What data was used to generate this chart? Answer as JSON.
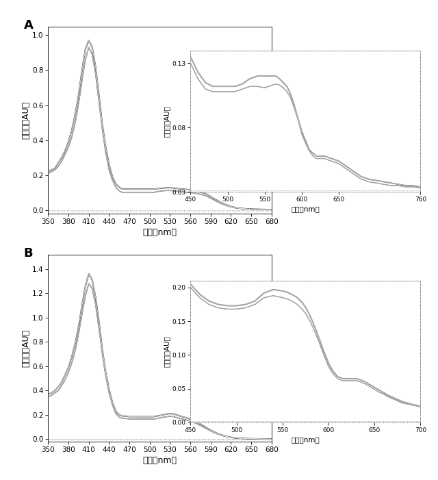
{
  "panel_A": {
    "label": "A",
    "xlabel": "波長（nm）",
    "ylabel": "吸光度（AU）",
    "xlim": [
      350,
      680
    ],
    "ylim": [
      -0.02,
      1.05
    ],
    "xticks": [
      350,
      380,
      410,
      440,
      470,
      500,
      530,
      560,
      590,
      620,
      650,
      680
    ],
    "yticks": [
      0,
      0.2,
      0.4,
      0.6,
      0.8,
      1
    ],
    "curve1_x": [
      350,
      355,
      360,
      365,
      370,
      375,
      380,
      385,
      390,
      395,
      400,
      405,
      410,
      415,
      420,
      425,
      430,
      435,
      440,
      445,
      450,
      455,
      460,
      465,
      470,
      475,
      480,
      485,
      490,
      495,
      500,
      505,
      510,
      515,
      520,
      525,
      530,
      535,
      540,
      545,
      550,
      555,
      560,
      565,
      570,
      575,
      580,
      585,
      590,
      595,
      600,
      605,
      610,
      615,
      620,
      625,
      630,
      635,
      640,
      645,
      650,
      655,
      660,
      665,
      670,
      675,
      680
    ],
    "curve1_y": [
      0.21,
      0.22,
      0.23,
      0.25,
      0.28,
      0.32,
      0.36,
      0.42,
      0.5,
      0.61,
      0.74,
      0.86,
      0.93,
      0.89,
      0.78,
      0.62,
      0.46,
      0.33,
      0.23,
      0.17,
      0.13,
      0.11,
      0.1,
      0.1,
      0.1,
      0.1,
      0.1,
      0.1,
      0.1,
      0.1,
      0.1,
      0.1,
      0.105,
      0.108,
      0.11,
      0.112,
      0.112,
      0.11,
      0.108,
      0.106,
      0.104,
      0.102,
      0.1,
      0.098,
      0.095,
      0.09,
      0.085,
      0.078,
      0.068,
      0.058,
      0.048,
      0.038,
      0.03,
      0.024,
      0.018,
      0.014,
      0.011,
      0.009,
      0.007,
      0.006,
      0.005,
      0.004,
      0.004,
      0.003,
      0.003,
      0.003,
      0.003
    ],
    "curve2_x": [
      350,
      355,
      360,
      365,
      370,
      375,
      380,
      385,
      390,
      395,
      400,
      405,
      410,
      415,
      420,
      425,
      430,
      435,
      440,
      445,
      450,
      455,
      460,
      465,
      470,
      475,
      480,
      485,
      490,
      495,
      500,
      505,
      510,
      515,
      520,
      525,
      530,
      535,
      540,
      545,
      550,
      555,
      560,
      565,
      570,
      575,
      580,
      585,
      590,
      595,
      600,
      605,
      610,
      615,
      620,
      625,
      630,
      635,
      640,
      645,
      650,
      655,
      660,
      665,
      670,
      675,
      680
    ],
    "curve2_y": [
      0.22,
      0.23,
      0.24,
      0.27,
      0.3,
      0.34,
      0.39,
      0.46,
      0.55,
      0.66,
      0.8,
      0.92,
      0.97,
      0.93,
      0.82,
      0.66,
      0.49,
      0.36,
      0.26,
      0.19,
      0.15,
      0.13,
      0.12,
      0.12,
      0.12,
      0.12,
      0.12,
      0.12,
      0.12,
      0.12,
      0.12,
      0.12,
      0.122,
      0.124,
      0.126,
      0.128,
      0.128,
      0.126,
      0.124,
      0.122,
      0.12,
      0.118,
      0.115,
      0.112,
      0.108,
      0.103,
      0.097,
      0.089,
      0.078,
      0.066,
      0.055,
      0.044,
      0.035,
      0.028,
      0.021,
      0.016,
      0.012,
      0.01,
      0.008,
      0.007,
      0.006,
      0.005,
      0.005,
      0.004,
      0.004,
      0.003,
      0.003
    ],
    "inset": {
      "xlabel": "波長（nm）",
      "ylabel": "吸光度（AU）",
      "xlim": [
        450,
        760
      ],
      "ylim": [
        0.03,
        0.14
      ],
      "xticks": [
        450,
        500,
        550,
        600,
        650,
        760
      ],
      "yticks": [
        0.03,
        0.08,
        0.13
      ],
      "curve1_x": [
        450,
        460,
        470,
        480,
        490,
        500,
        510,
        520,
        530,
        540,
        550,
        555,
        560,
        565,
        570,
        575,
        580,
        585,
        590,
        595,
        600,
        605,
        610,
        615,
        620,
        625,
        630,
        635,
        640,
        645,
        650,
        655,
        660,
        665,
        670,
        675,
        680,
        690,
        700,
        710,
        720,
        730,
        740,
        750,
        760
      ],
      "curve1_y": [
        0.13,
        0.118,
        0.11,
        0.108,
        0.108,
        0.108,
        0.108,
        0.11,
        0.112,
        0.112,
        0.111,
        0.112,
        0.113,
        0.114,
        0.113,
        0.111,
        0.108,
        0.103,
        0.095,
        0.086,
        0.075,
        0.068,
        0.062,
        0.058,
        0.056,
        0.056,
        0.056,
        0.055,
        0.054,
        0.053,
        0.052,
        0.05,
        0.048,
        0.046,
        0.044,
        0.042,
        0.04,
        0.038,
        0.037,
        0.036,
        0.035,
        0.035,
        0.034,
        0.034,
        0.033
      ],
      "curve2_x": [
        450,
        460,
        470,
        480,
        490,
        500,
        510,
        520,
        530,
        540,
        550,
        555,
        560,
        565,
        570,
        575,
        580,
        585,
        590,
        595,
        600,
        605,
        610,
        615,
        620,
        625,
        630,
        635,
        640,
        645,
        650,
        655,
        660,
        665,
        670,
        675,
        680,
        690,
        700,
        710,
        720,
        730,
        740,
        750,
        760
      ],
      "curve2_y": [
        0.135,
        0.123,
        0.115,
        0.112,
        0.112,
        0.112,
        0.112,
        0.114,
        0.118,
        0.12,
        0.12,
        0.12,
        0.12,
        0.12,
        0.118,
        0.115,
        0.112,
        0.106,
        0.097,
        0.087,
        0.077,
        0.07,
        0.063,
        0.06,
        0.058,
        0.058,
        0.058,
        0.057,
        0.056,
        0.055,
        0.054,
        0.052,
        0.05,
        0.048,
        0.046,
        0.044,
        0.042,
        0.04,
        0.039,
        0.038,
        0.037,
        0.036,
        0.035,
        0.035,
        0.034
      ]
    }
  },
  "panel_B": {
    "label": "B",
    "xlabel": "波長（nm）",
    "ylabel": "吸光度（AU）",
    "xlim": [
      350,
      680
    ],
    "ylim": [
      -0.02,
      1.52
    ],
    "xticks": [
      350,
      380,
      410,
      440,
      470,
      500,
      530,
      560,
      590,
      620,
      650,
      680
    ],
    "yticks": [
      0,
      0.2,
      0.4,
      0.6,
      0.8,
      1,
      1.2,
      1.4
    ],
    "curve1_x": [
      350,
      355,
      360,
      365,
      370,
      375,
      380,
      385,
      390,
      395,
      400,
      405,
      410,
      415,
      420,
      425,
      430,
      435,
      440,
      445,
      450,
      455,
      460,
      465,
      470,
      475,
      480,
      485,
      490,
      495,
      500,
      505,
      510,
      515,
      520,
      525,
      530,
      535,
      540,
      545,
      550,
      555,
      560,
      565,
      570,
      575,
      580,
      585,
      590,
      595,
      600,
      605,
      610,
      615,
      620,
      625,
      630,
      635,
      640,
      645,
      650,
      655,
      660,
      665,
      670,
      675,
      680
    ],
    "curve1_y": [
      0.35,
      0.36,
      0.38,
      0.4,
      0.44,
      0.49,
      0.55,
      0.63,
      0.73,
      0.87,
      1.03,
      1.18,
      1.28,
      1.24,
      1.11,
      0.91,
      0.7,
      0.52,
      0.38,
      0.28,
      0.21,
      0.18,
      0.17,
      0.17,
      0.165,
      0.165,
      0.165,
      0.165,
      0.165,
      0.165,
      0.165,
      0.165,
      0.17,
      0.175,
      0.18,
      0.185,
      0.188,
      0.185,
      0.178,
      0.17,
      0.163,
      0.156,
      0.148,
      0.138,
      0.126,
      0.112,
      0.097,
      0.082,
      0.068,
      0.054,
      0.042,
      0.033,
      0.025,
      0.019,
      0.014,
      0.01,
      0.008,
      0.006,
      0.005,
      0.004,
      0.003,
      0.003,
      0.002,
      0.002,
      0.002,
      0.001,
      0.001
    ],
    "curve2_x": [
      350,
      355,
      360,
      365,
      370,
      375,
      380,
      385,
      390,
      395,
      400,
      405,
      410,
      415,
      420,
      425,
      430,
      435,
      440,
      445,
      450,
      455,
      460,
      465,
      470,
      475,
      480,
      485,
      490,
      495,
      500,
      505,
      510,
      515,
      520,
      525,
      530,
      535,
      540,
      545,
      550,
      555,
      560,
      565,
      570,
      575,
      580,
      585,
      590,
      595,
      600,
      605,
      610,
      615,
      620,
      625,
      630,
      635,
      640,
      645,
      650,
      655,
      660,
      665,
      670,
      675,
      680
    ],
    "curve2_y": [
      0.37,
      0.38,
      0.4,
      0.43,
      0.47,
      0.53,
      0.59,
      0.68,
      0.79,
      0.93,
      1.1,
      1.26,
      1.36,
      1.31,
      1.17,
      0.97,
      0.74,
      0.55,
      0.41,
      0.3,
      0.23,
      0.2,
      0.19,
      0.19,
      0.185,
      0.185,
      0.185,
      0.185,
      0.185,
      0.185,
      0.185,
      0.185,
      0.19,
      0.195,
      0.2,
      0.207,
      0.21,
      0.207,
      0.2,
      0.19,
      0.182,
      0.174,
      0.165,
      0.153,
      0.14,
      0.124,
      0.108,
      0.091,
      0.075,
      0.06,
      0.047,
      0.037,
      0.028,
      0.021,
      0.015,
      0.011,
      0.009,
      0.007,
      0.006,
      0.005,
      0.004,
      0.003,
      0.003,
      0.002,
      0.002,
      0.001,
      0.001
    ],
    "inset": {
      "xlabel": "波長（nm）",
      "ylabel": "吸光度（AU）",
      "xlim": [
        450,
        700
      ],
      "ylim": [
        0,
        0.21
      ],
      "xticks": [
        450,
        500,
        550,
        600,
        650,
        700
      ],
      "yticks": [
        0,
        0.05,
        0.1,
        0.15,
        0.2
      ],
      "curve1_x": [
        450,
        460,
        470,
        480,
        490,
        500,
        510,
        520,
        530,
        540,
        550,
        555,
        560,
        565,
        570,
        575,
        580,
        585,
        590,
        595,
        600,
        605,
        610,
        615,
        620,
        625,
        630,
        635,
        640,
        645,
        650,
        655,
        660,
        665,
        670,
        675,
        680,
        690,
        700
      ],
      "curve1_y": [
        0.2,
        0.185,
        0.175,
        0.17,
        0.168,
        0.168,
        0.17,
        0.175,
        0.185,
        0.188,
        0.185,
        0.183,
        0.18,
        0.176,
        0.17,
        0.162,
        0.15,
        0.135,
        0.118,
        0.1,
        0.083,
        0.072,
        0.065,
        0.062,
        0.062,
        0.062,
        0.062,
        0.06,
        0.057,
        0.053,
        0.049,
        0.045,
        0.042,
        0.038,
        0.035,
        0.032,
        0.029,
        0.026,
        0.023
      ],
      "curve2_x": [
        450,
        460,
        470,
        480,
        490,
        500,
        510,
        520,
        530,
        540,
        550,
        555,
        560,
        565,
        570,
        575,
        580,
        585,
        590,
        595,
        600,
        605,
        610,
        615,
        620,
        625,
        630,
        635,
        640,
        645,
        650,
        655,
        660,
        665,
        670,
        675,
        680,
        690,
        700
      ],
      "curve2_y": [
        0.205,
        0.19,
        0.18,
        0.175,
        0.173,
        0.173,
        0.175,
        0.18,
        0.192,
        0.197,
        0.195,
        0.193,
        0.19,
        0.186,
        0.18,
        0.171,
        0.158,
        0.142,
        0.124,
        0.105,
        0.088,
        0.076,
        0.068,
        0.065,
        0.065,
        0.065,
        0.065,
        0.063,
        0.06,
        0.056,
        0.052,
        0.048,
        0.044,
        0.04,
        0.037,
        0.034,
        0.031,
        0.027,
        0.024
      ]
    }
  },
  "line_color": "#555555",
  "line_color2": "#888888"
}
